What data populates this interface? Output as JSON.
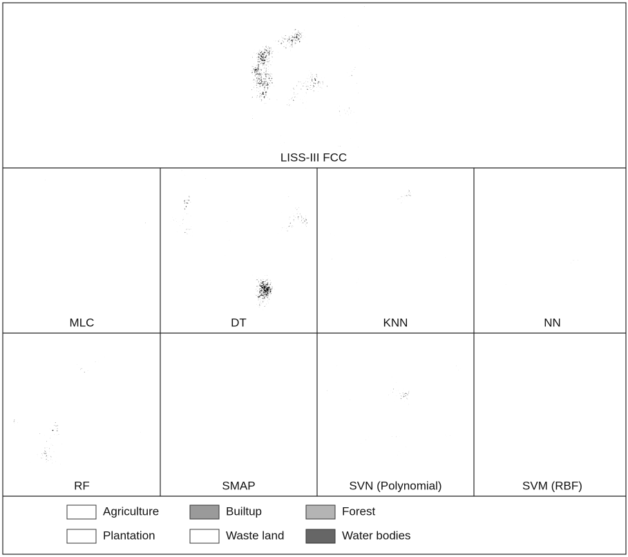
{
  "figure": {
    "top": {
      "label": "LISS-III FCC"
    },
    "panels": [
      "MLC",
      "DT",
      "KNN",
      "NN",
      "RF",
      "SMAP",
      "SVN (Polynomial)",
      "SVM (RBF)"
    ],
    "legend": [
      "Agriculture",
      "Builtup",
      "Forest",
      "Plantation",
      "Waste land",
      "Water bodies"
    ]
  }
}
